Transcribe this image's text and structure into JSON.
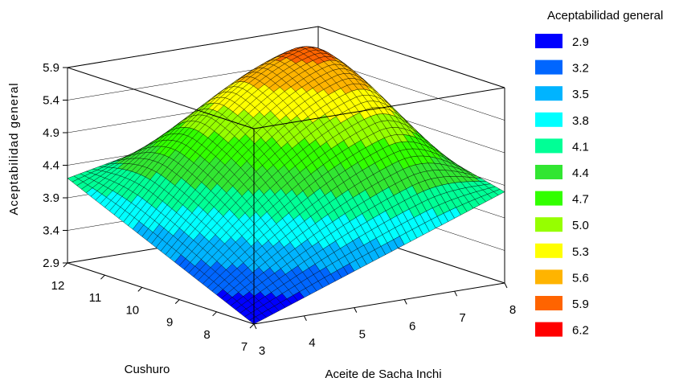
{
  "chart_data": {
    "type": "surface3d",
    "zlabel": "Aceptabilidad general",
    "xlabel": "Aceite de Sacha Inchi",
    "ylabel": "Cushuro",
    "x_ticks": [
      "3",
      "4",
      "5",
      "6",
      "7",
      "8"
    ],
    "y_ticks": [
      "7",
      "8",
      "9",
      "10",
      "11",
      "12"
    ],
    "z_ticks": [
      "2.9",
      "3.4",
      "3.9",
      "4.4",
      "4.9",
      "5.4",
      "5.9"
    ],
    "xlim": [
      3,
      8
    ],
    "ylim": [
      7,
      12
    ],
    "zlim": [
      2.9,
      5.9
    ],
    "corner_values": [
      {
        "x": 3,
        "y": 7,
        "z": 2.9
      },
      {
        "x": 8,
        "y": 7,
        "z": 4.3
      },
      {
        "x": 3,
        "y": 12,
        "z": 4.2
      },
      {
        "x": 8,
        "y": 12,
        "z": 5.0
      }
    ],
    "peak": {
      "x": 6.6,
      "y": 10.4,
      "z": 6.0
    },
    "legend": {
      "title": "Aceptabilidad general",
      "position": "right",
      "items": [
        {
          "label": "2.9",
          "color": "#0000ff"
        },
        {
          "label": "3.2",
          "color": "#0066ff"
        },
        {
          "label": "3.5",
          "color": "#00b4ff"
        },
        {
          "label": "3.8",
          "color": "#00ffff"
        },
        {
          "label": "4.1",
          "color": "#00ff96"
        },
        {
          "label": "4.4",
          "color": "#32e632"
        },
        {
          "label": "4.7",
          "color": "#32ff00"
        },
        {
          "label": "5.0",
          "color": "#96ff00"
        },
        {
          "label": "5.3",
          "color": "#ffff00"
        },
        {
          "label": "5.6",
          "color": "#ffb400"
        },
        {
          "label": "5.9",
          "color": "#ff6400"
        },
        {
          "label": "6.2",
          "color": "#ff0000"
        }
      ]
    }
  }
}
